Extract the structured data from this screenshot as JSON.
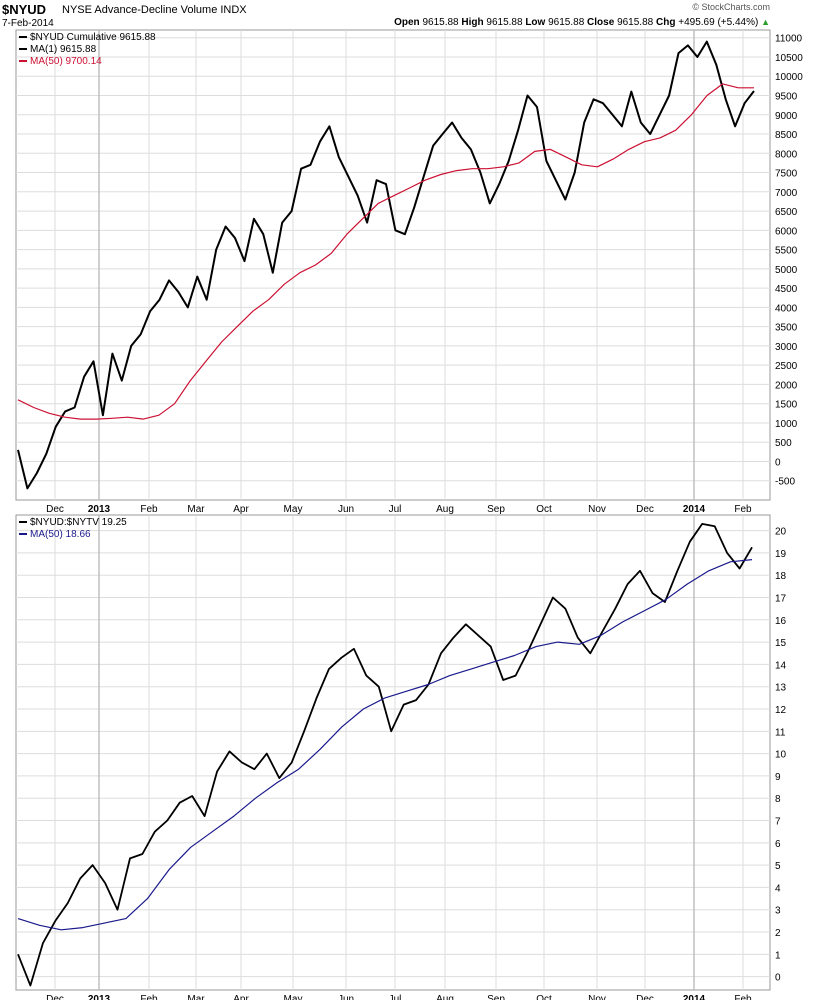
{
  "header": {
    "symbol": "$NYUD",
    "name": "NYSE Advance-Decline Volume INDX",
    "date": "7-Feb-2014",
    "copyright": "© StockCharts.com",
    "open_label": "Open",
    "open": "9615.88",
    "high_label": "High",
    "high": "9615.88",
    "low_label": "Low",
    "low": "9615.88",
    "close_label": "Close",
    "close": "9615.88",
    "chg_label": "Chg",
    "chg": "+495.69 (+5.44%)",
    "chg_icon": "up-triangle-icon"
  },
  "colors": {
    "price_line": "#000000",
    "ma50_top": "#cc1133",
    "ma50_bottom": "#1a1a8c",
    "grid": "#dddddd"
  },
  "chart_data": [
    {
      "type": "line",
      "legend": [
        {
          "text": "$NYUD Cumulative 9615.88",
          "color": "#000000"
        },
        {
          "text": "MA(1) 9615.88",
          "color": "#000000"
        },
        {
          "text": "MA(50) 9700.14",
          "color": "#cc1133"
        }
      ],
      "ylim": [
        -1000,
        11200
      ],
      "y_ticks": [
        -500,
        0,
        500,
        1000,
        1500,
        2000,
        2500,
        3000,
        3500,
        4000,
        4500,
        5000,
        5500,
        6000,
        6500,
        7000,
        7500,
        8000,
        8500,
        9000,
        9500,
        10000,
        10500,
        11000
      ],
      "x_ticks": [
        "Dec",
        "2013",
        "Feb",
        "Mar",
        "Apr",
        "May",
        "Jun",
        "Jul",
        "Aug",
        "Sep",
        "Oct",
        "Nov",
        "Dec",
        "2014",
        "Feb"
      ],
      "series": [
        {
          "name": "$NYUD Cumulative",
          "values": [
            300,
            -700,
            -300,
            200,
            900,
            1300,
            1400,
            2200,
            2600,
            1200,
            2800,
            2100,
            3000,
            3300,
            3900,
            4200,
            4700,
            4400,
            4000,
            4800,
            4200,
            5500,
            6100,
            5800,
            5200,
            6300,
            5900,
            4900,
            6200,
            6500,
            7600,
            7700,
            8300,
            8700,
            7900,
            7400,
            6900,
            6200,
            7300,
            7200,
            6000,
            5900,
            6600,
            7400,
            8200,
            8500,
            8800,
            8400,
            8100,
            7500,
            6700,
            7200,
            7800,
            8600,
            9500,
            9200,
            7800,
            7300,
            6800,
            7500,
            8800,
            9400,
            9300,
            9000,
            8700,
            9600,
            8800,
            8500,
            9000,
            9500,
            10600,
            10800,
            10500,
            10900,
            10300,
            9400,
            8700,
            9300,
            9616
          ]
        },
        {
          "name": "MA(50)",
          "values": [
            1600,
            1400,
            1250,
            1150,
            1100,
            1100,
            1120,
            1150,
            1100,
            1200,
            1500,
            2100,
            2600,
            3100,
            3500,
            3900,
            4200,
            4600,
            4900,
            5100,
            5400,
            5900,
            6300,
            6700,
            6900,
            7100,
            7300,
            7450,
            7550,
            7600,
            7600,
            7650,
            7750,
            8050,
            8100,
            7900,
            7700,
            7650,
            7850,
            8100,
            8300,
            8400,
            8600,
            9000,
            9500,
            9800,
            9700,
            9700
          ]
        }
      ]
    },
    {
      "type": "line",
      "legend": [
        {
          "text": "$NYUD:$NYTV 19.25",
          "color": "#000000"
        },
        {
          "text": "MA(50) 18.66",
          "color": "#1a1a8c"
        }
      ],
      "ylim": [
        -0.6,
        20.7
      ],
      "y_ticks": [
        0,
        1,
        2,
        3,
        4,
        5,
        6,
        7,
        8,
        9,
        10,
        11,
        12,
        13,
        14,
        15,
        16,
        17,
        18,
        19,
        20
      ],
      "x_ticks": [
        "Dec",
        "2013",
        "Feb",
        "Mar",
        "Apr",
        "May",
        "Jun",
        "Jul",
        "Aug",
        "Sep",
        "Oct",
        "Nov",
        "Dec",
        "2014",
        "Feb"
      ],
      "series": [
        {
          "name": "$NYUD:$NYTV",
          "values": [
            1,
            -0.4,
            1.5,
            2.5,
            3.3,
            4.4,
            5,
            4.2,
            3,
            5.3,
            5.5,
            6.5,
            7,
            7.8,
            8.1,
            7.2,
            9.2,
            10.1,
            9.6,
            9.3,
            10,
            8.9,
            9.6,
            11,
            12.5,
            13.8,
            14.3,
            14.7,
            13.5,
            13,
            11,
            12.2,
            12.4,
            13.1,
            14.5,
            15.2,
            15.8,
            15.3,
            14.8,
            13.3,
            13.5,
            14.6,
            15.8,
            17,
            16.5,
            15.2,
            14.5,
            15.5,
            16.5,
            17.6,
            18.2,
            17.2,
            16.8,
            18.2,
            19.5,
            20.3,
            20.2,
            19,
            18.3,
            19.25
          ]
        },
        {
          "name": "MA(50)",
          "values": [
            2.6,
            2.3,
            2.1,
            2.2,
            2.4,
            2.6,
            3.5,
            4.8,
            5.8,
            6.5,
            7.2,
            8,
            8.7,
            9.3,
            10.2,
            11.2,
            12,
            12.5,
            12.8,
            13.1,
            13.5,
            13.8,
            14.1,
            14.4,
            14.8,
            15,
            14.9,
            15.3,
            15.9,
            16.4,
            16.9,
            17.6,
            18.2,
            18.6,
            18.7
          ]
        }
      ]
    }
  ]
}
